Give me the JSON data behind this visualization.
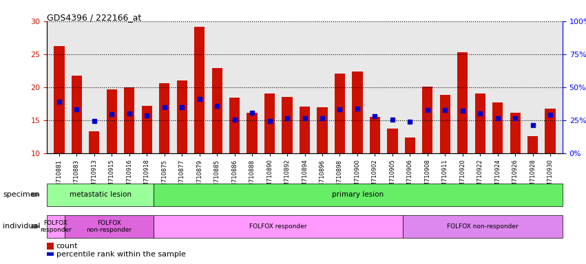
{
  "title": "GDS4396 / 222166_at",
  "samples": [
    "GSM710881",
    "GSM710883",
    "GSM710913",
    "GSM710915",
    "GSM710916",
    "GSM710918",
    "GSM710875",
    "GSM710877",
    "GSM710879",
    "GSM710885",
    "GSM710886",
    "GSM710888",
    "GSM710890",
    "GSM710892",
    "GSM710894",
    "GSM710896",
    "GSM710898",
    "GSM710900",
    "GSM710902",
    "GSM710905",
    "GSM710906",
    "GSM710908",
    "GSM710911",
    "GSM710920",
    "GSM710922",
    "GSM710924",
    "GSM710926",
    "GSM710928",
    "GSM710930"
  ],
  "counts": [
    26.2,
    21.7,
    13.3,
    19.7,
    20.0,
    17.2,
    20.6,
    21.0,
    29.1,
    22.9,
    18.4,
    16.1,
    19.0,
    18.5,
    17.1,
    17.0,
    22.1,
    22.4,
    15.5,
    13.7,
    12.4,
    20.1,
    18.8,
    25.3,
    19.0,
    17.7,
    16.1,
    12.6,
    16.7
  ],
  "percentiles": [
    17.8,
    16.6,
    14.9,
    15.9,
    16.0,
    15.7,
    17.0,
    17.0,
    18.2,
    17.2,
    15.1,
    16.1,
    14.9,
    15.3,
    15.3,
    15.3,
    16.6,
    16.7,
    15.6,
    15.1,
    14.8,
    16.5,
    16.5,
    16.4,
    16.0,
    15.3,
    15.3,
    14.2,
    15.8
  ],
  "ylim_left": [
    10,
    30
  ],
  "yticks_left": [
    10,
    15,
    20,
    25,
    30
  ],
  "ylim_right": [
    0,
    100
  ],
  "yticks_right": [
    0,
    25,
    50,
    75,
    100
  ],
  "bar_color": "#cc1100",
  "percentile_color": "#0000cc",
  "grid_color": "#000000",
  "specimen_groups": [
    {
      "label": "metastatic lesion",
      "start": 0,
      "end": 6,
      "color": "#99ff99"
    },
    {
      "label": "primary lesion",
      "start": 6,
      "end": 29,
      "color": "#66ee66"
    }
  ],
  "individual_groups": [
    {
      "label": "FOLFOX\nresponder",
      "start": 0,
      "end": 1,
      "color": "#ff99ff"
    },
    {
      "label": "FOLFOX\nnon-responder",
      "start": 1,
      "end": 6,
      "color": "#dd66dd"
    },
    {
      "label": "FOLFOX responder",
      "start": 6,
      "end": 20,
      "color": "#ff99ff"
    },
    {
      "label": "FOLFOX non-responder",
      "start": 20,
      "end": 29,
      "color": "#dd88ee"
    }
  ],
  "specimen_label": "specimen",
  "individual_label": "individual",
  "legend_count": "count",
  "legend_percentile": "percentile rank within the sample"
}
